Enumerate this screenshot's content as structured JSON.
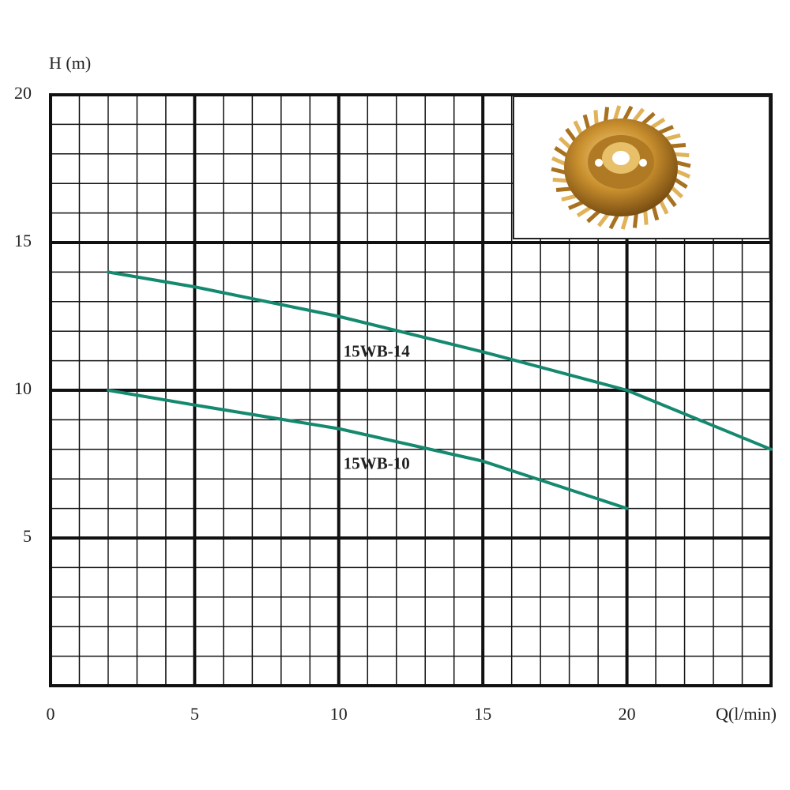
{
  "chart_data": {
    "type": "line",
    "x_label": "Q(l/min)",
    "y_label": "H (m)",
    "x": [
      2,
      5,
      10,
      15,
      20,
      25
    ],
    "series": [
      {
        "name": "15WB-14",
        "color": "#15896f",
        "values": [
          14,
          13.5,
          12.5,
          11.3,
          10,
          8
        ]
      },
      {
        "name": "15WB-10",
        "color": "#15896f",
        "values": [
          10,
          9.5,
          8.7,
          7.6,
          6,
          null
        ]
      }
    ],
    "xlim": [
      0,
      25
    ],
    "xticks": [
      0,
      5,
      10,
      15,
      20
    ],
    "ylim": [
      0,
      20
    ],
    "yticks": [
      5,
      10,
      15,
      20
    ],
    "grid": true
  }
}
